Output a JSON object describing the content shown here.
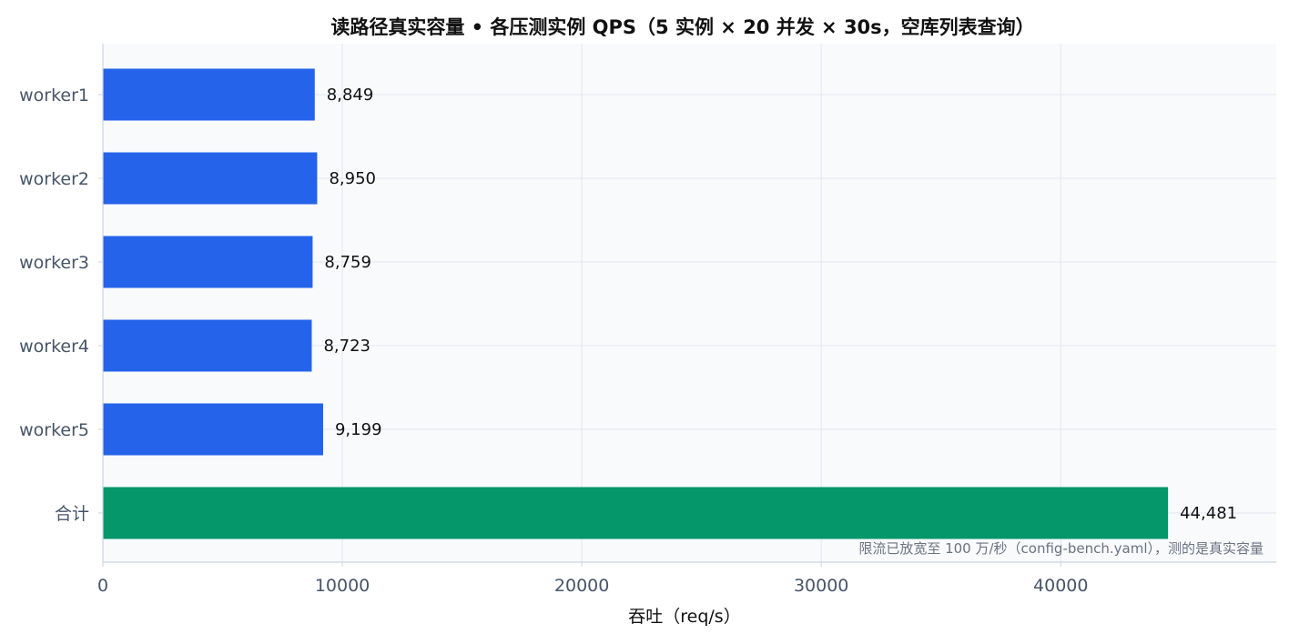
{
  "colors": {
    "worker_bar": "#2563eb",
    "total_bar": "#059669",
    "plot_background": "#f8fafc",
    "grid": "#e2e8f0",
    "axis": "#cbd5e1"
  },
  "chart_data": {
    "type": "bar",
    "orientation": "horizontal",
    "title": "读路径真实容量 • 各压测实例 QPS（5 实例 × 20 并发 × 30s，空库列表查询）",
    "xlabel": "吞吐（req/s）",
    "ylabel": "",
    "categories": [
      "worker1",
      "worker2",
      "worker3",
      "worker4",
      "worker5",
      "合计"
    ],
    "values": [
      8849,
      8950,
      8759,
      8723,
      9199,
      44481
    ],
    "value_labels": [
      "8,849",
      "8,950",
      "8,759",
      "8,723",
      "9,199",
      "44,481"
    ],
    "bar_colors": [
      "#2563eb",
      "#2563eb",
      "#2563eb",
      "#2563eb",
      "#2563eb",
      "#059669"
    ],
    "xlim": [
      0,
      49000
    ],
    "xticks": [
      0,
      10000,
      20000,
      30000,
      40000
    ],
    "xtick_labels": [
      "0",
      "10000",
      "20000",
      "30000",
      "40000"
    ],
    "grid": true,
    "annotation": "限流已放宽至 100 万/秒（config-bench.yaml），测的是真实容量"
  }
}
